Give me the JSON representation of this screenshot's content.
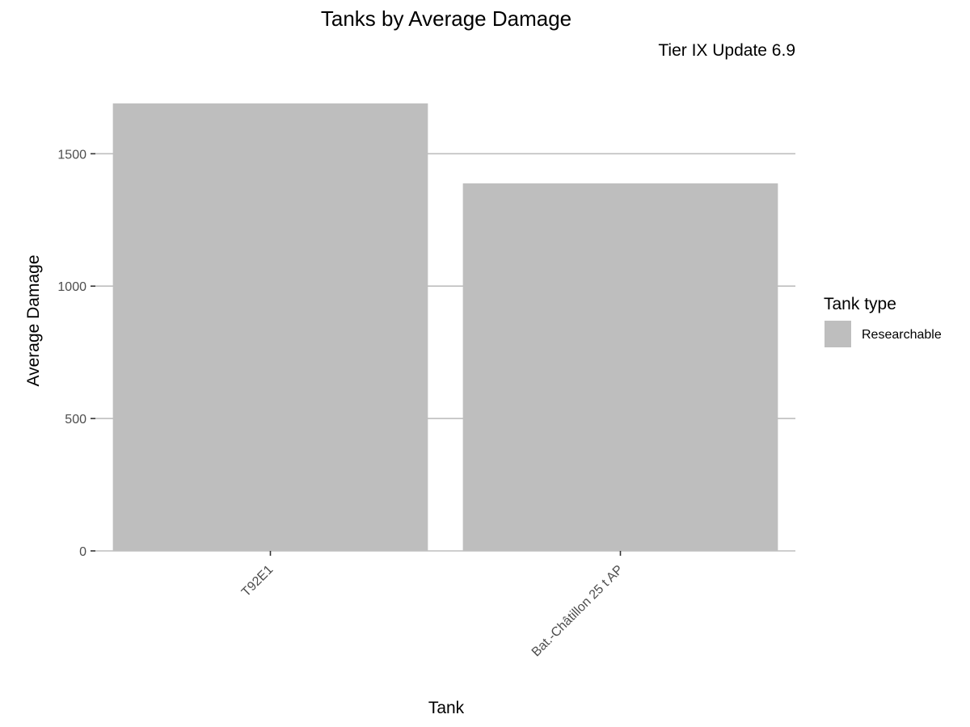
{
  "chart_data": {
    "type": "bar",
    "title": "Tanks by Average Damage",
    "subtitle": "Tier IX Update 6.9",
    "xlabel": "Tank",
    "ylabel": "Average Damage",
    "categories": [
      "T92E1",
      "Bat.-Châtillon 25 t AP"
    ],
    "series": [
      {
        "name": "Researchable",
        "values": [
          1690,
          1388
        ],
        "color": "#bebebe"
      }
    ],
    "ylim": [
      0,
      1800
    ],
    "yticks": [
      0,
      500,
      1000,
      1500
    ],
    "grid": true,
    "legend": {
      "title": "Tank type",
      "position": "right",
      "entries": [
        {
          "label": "Researchable",
          "color": "#bebebe"
        }
      ]
    }
  }
}
